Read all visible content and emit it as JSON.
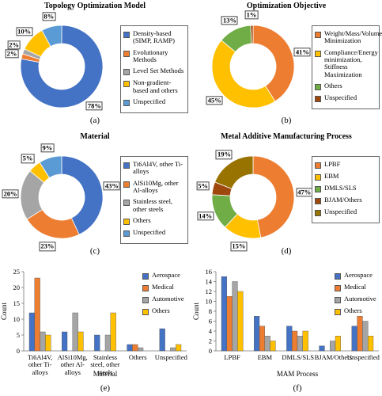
{
  "chart_data": [
    {
      "type": "donut",
      "title": "Topology Optimization Model",
      "caption": "(a)",
      "labels": [
        "Density-based (SIMP, RAMP)",
        "Evolutionary Methods",
        "Level Set Methods",
        "Non-gradient-based and others",
        "Unspecified"
      ],
      "values": [
        78,
        2,
        2,
        10,
        8
      ],
      "value_labels": [
        "78%",
        "2%",
        "2%",
        "10%",
        "8%"
      ],
      "colors": [
        "#4472c4",
        "#ed7d31",
        "#a5a5a5",
        "#ffc000",
        "#5b9bd5"
      ]
    },
    {
      "type": "donut",
      "title": "Optimization Objective",
      "caption": "(b)",
      "labels": [
        "Weight/Mass/Volume Minimization",
        "Compliance/Energy minimization, Stiffness Maximization",
        "Others",
        "Unspecified"
      ],
      "values": [
        41,
        45,
        13,
        1
      ],
      "value_labels": [
        "41%",
        "45%",
        "13%",
        "1%"
      ],
      "colors": [
        "#ed7d31",
        "#ffc000",
        "#70ad47",
        "#9e480e"
      ]
    },
    {
      "type": "donut",
      "title": "Material",
      "caption": "(c)",
      "labels": [
        "Ti6Al4V, other Ti-alloys",
        "AlSi10Mg, other Al-alloys",
        "Stainless steel, other steels",
        "Others",
        "Unspecified"
      ],
      "values": [
        43,
        23,
        20,
        5,
        9
      ],
      "value_labels": [
        "43%",
        "23%",
        "20%",
        "5%",
        "9%"
      ],
      "colors": [
        "#4472c4",
        "#ed7d31",
        "#a5a5a5",
        "#ffc000",
        "#5b9bd5"
      ]
    },
    {
      "type": "donut",
      "title": "Metal Additive Manufacturing Process",
      "caption": "(d)",
      "labels": [
        "LPBF",
        "EBM",
        "DMLS/SLS",
        "BJAM/Others",
        "Unspecified"
      ],
      "values": [
        47,
        15,
        14,
        5,
        19
      ],
      "value_labels": [
        "47%",
        "15%",
        "14%",
        "5%",
        "19%"
      ],
      "colors": [
        "#ed7d31",
        "#ffc000",
        "#70ad47",
        "#9e480e",
        "#997300"
      ]
    },
    {
      "type": "bar",
      "caption": "(e)",
      "xlabel": "Material",
      "ylabel": "Count",
      "categories": [
        "Ti6Al4V, other Ti-alloys",
        "AlSi10Mg, other Al-alloys",
        "Stainless steel, other steels",
        "Others",
        "Unspecified"
      ],
      "series": [
        {
          "name": "Aerospace",
          "color": "#4472c4",
          "values": [
            12,
            6,
            5,
            2,
            7
          ]
        },
        {
          "name": "Medical",
          "color": "#ed7d31",
          "values": [
            23,
            0,
            0,
            2,
            0
          ]
        },
        {
          "name": "Automotive",
          "color": "#a5a5a5",
          "values": [
            6,
            12,
            5,
            1,
            1
          ]
        },
        {
          "name": "Others",
          "color": "#ffc000",
          "values": [
            5,
            6,
            12,
            0,
            2
          ]
        }
      ],
      "ylim": [
        0,
        25
      ],
      "yticks": [
        0,
        5,
        10,
        15,
        20,
        25
      ],
      "legend": "upper right"
    },
    {
      "type": "bar",
      "caption": "(f)",
      "xlabel": "MAM Process",
      "ylabel": "Count",
      "categories": [
        "LPBF",
        "EBM",
        "DMLS/SLS",
        "BJAM/Others",
        "Unspecified"
      ],
      "series": [
        {
          "name": "Aerospace",
          "color": "#4472c4",
          "values": [
            15,
            7,
            5,
            1,
            5
          ]
        },
        {
          "name": "Medical",
          "color": "#ed7d31",
          "values": [
            11,
            5,
            4,
            0,
            7
          ]
        },
        {
          "name": "Automotive",
          "color": "#a5a5a5",
          "values": [
            14,
            3,
            3,
            2,
            6
          ]
        },
        {
          "name": "Others",
          "color": "#ffc000",
          "values": [
            12,
            2,
            4,
            3,
            3
          ]
        }
      ],
      "ylim": [
        0,
        16
      ],
      "yticks": [
        0,
        2,
        4,
        6,
        8,
        10,
        12,
        14,
        16
      ],
      "legend": "upper right"
    }
  ]
}
